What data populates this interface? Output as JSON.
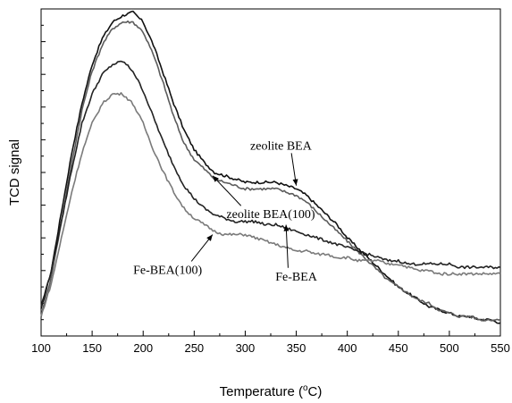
{
  "chart_data": {
    "type": "line",
    "title": "",
    "xlabel": "Temperature (°C)",
    "xlabel_base": "Temperature (",
    "xlabel_degree": "o",
    "xlabel_unit": "C)",
    "ylabel": "TCD signal",
    "xlim": [
      100,
      550
    ],
    "ylim": [
      0,
      1
    ],
    "x_ticks": [
      100,
      150,
      200,
      250,
      300,
      350,
      400,
      450,
      500,
      550
    ],
    "y_tick_labels_shown": false,
    "grid": false,
    "legend": "none",
    "series": [
      {
        "name": "zeolite BEA",
        "color": "#111111",
        "points": [
          [
            100,
            0.08
          ],
          [
            110,
            0.2
          ],
          [
            120,
            0.38
          ],
          [
            130,
            0.56
          ],
          [
            140,
            0.71
          ],
          [
            150,
            0.83
          ],
          [
            160,
            0.91
          ],
          [
            170,
            0.96
          ],
          [
            180,
            0.98
          ],
          [
            190,
            0.99
          ],
          [
            200,
            0.96
          ],
          [
            210,
            0.89
          ],
          [
            220,
            0.8
          ],
          [
            230,
            0.71
          ],
          [
            240,
            0.63
          ],
          [
            250,
            0.57
          ],
          [
            260,
            0.53
          ],
          [
            270,
            0.5
          ],
          [
            280,
            0.49
          ],
          [
            290,
            0.48
          ],
          [
            300,
            0.47
          ],
          [
            310,
            0.47
          ],
          [
            320,
            0.47
          ],
          [
            330,
            0.47
          ],
          [
            340,
            0.46
          ],
          [
            350,
            0.45
          ],
          [
            360,
            0.43
          ],
          [
            370,
            0.4
          ],
          [
            380,
            0.37
          ],
          [
            390,
            0.34
          ],
          [
            400,
            0.3
          ],
          [
            410,
            0.27
          ],
          [
            420,
            0.24
          ],
          [
            430,
            0.21
          ],
          [
            440,
            0.18
          ],
          [
            450,
            0.15
          ],
          [
            460,
            0.13
          ],
          [
            470,
            0.11
          ],
          [
            480,
            0.09
          ],
          [
            490,
            0.08
          ],
          [
            500,
            0.07
          ],
          [
            510,
            0.06
          ],
          [
            520,
            0.06
          ],
          [
            530,
            0.05
          ],
          [
            540,
            0.05
          ],
          [
            550,
            0.04
          ]
        ]
      },
      {
        "name": "zeolite BEA(100)",
        "color": "#5c5c5c",
        "points": [
          [
            100,
            0.06
          ],
          [
            110,
            0.18
          ],
          [
            120,
            0.35
          ],
          [
            130,
            0.53
          ],
          [
            140,
            0.69
          ],
          [
            150,
            0.81
          ],
          [
            160,
            0.89
          ],
          [
            170,
            0.94
          ],
          [
            180,
            0.96
          ],
          [
            190,
            0.96
          ],
          [
            200,
            0.93
          ],
          [
            210,
            0.86
          ],
          [
            220,
            0.77
          ],
          [
            230,
            0.67
          ],
          [
            240,
            0.59
          ],
          [
            250,
            0.54
          ],
          [
            260,
            0.51
          ],
          [
            270,
            0.48
          ],
          [
            280,
            0.47
          ],
          [
            290,
            0.46
          ],
          [
            300,
            0.45
          ],
          [
            310,
            0.45
          ],
          [
            320,
            0.45
          ],
          [
            330,
            0.45
          ],
          [
            340,
            0.44
          ],
          [
            350,
            0.43
          ],
          [
            360,
            0.41
          ],
          [
            370,
            0.38
          ],
          [
            380,
            0.35
          ],
          [
            390,
            0.32
          ],
          [
            400,
            0.29
          ],
          [
            410,
            0.26
          ],
          [
            420,
            0.23
          ],
          [
            430,
            0.2
          ],
          [
            440,
            0.17
          ],
          [
            450,
            0.15
          ],
          [
            460,
            0.13
          ],
          [
            470,
            0.11
          ],
          [
            480,
            0.1
          ],
          [
            490,
            0.08
          ],
          [
            500,
            0.07
          ],
          [
            510,
            0.06
          ],
          [
            520,
            0.06
          ],
          [
            530,
            0.05
          ],
          [
            540,
            0.05
          ],
          [
            550,
            0.05
          ]
        ]
      },
      {
        "name": "Fe-BEA",
        "color": "#222222",
        "points": [
          [
            100,
            0.09
          ],
          [
            110,
            0.2
          ],
          [
            120,
            0.35
          ],
          [
            130,
            0.51
          ],
          [
            140,
            0.65
          ],
          [
            150,
            0.74
          ],
          [
            160,
            0.8
          ],
          [
            170,
            0.83
          ],
          [
            180,
            0.84
          ],
          [
            190,
            0.81
          ],
          [
            200,
            0.75
          ],
          [
            210,
            0.67
          ],
          [
            220,
            0.59
          ],
          [
            230,
            0.52
          ],
          [
            240,
            0.46
          ],
          [
            250,
            0.42
          ],
          [
            260,
            0.39
          ],
          [
            270,
            0.37
          ],
          [
            280,
            0.36
          ],
          [
            290,
            0.35
          ],
          [
            300,
            0.35
          ],
          [
            310,
            0.35
          ],
          [
            320,
            0.34
          ],
          [
            330,
            0.34
          ],
          [
            340,
            0.33
          ],
          [
            350,
            0.32
          ],
          [
            360,
            0.31
          ],
          [
            370,
            0.3
          ],
          [
            380,
            0.29
          ],
          [
            390,
            0.28
          ],
          [
            400,
            0.27
          ],
          [
            410,
            0.26
          ],
          [
            420,
            0.25
          ],
          [
            430,
            0.24
          ],
          [
            440,
            0.23
          ],
          [
            450,
            0.23
          ],
          [
            460,
            0.22
          ],
          [
            470,
            0.22
          ],
          [
            480,
            0.22
          ],
          [
            490,
            0.22
          ],
          [
            500,
            0.22
          ],
          [
            510,
            0.21
          ],
          [
            520,
            0.21
          ],
          [
            530,
            0.21
          ],
          [
            540,
            0.21
          ],
          [
            550,
            0.21
          ]
        ]
      },
      {
        "name": "Fe-BEA(100)",
        "color": "#7a7a7a",
        "points": [
          [
            100,
            0.06
          ],
          [
            110,
            0.16
          ],
          [
            120,
            0.3
          ],
          [
            130,
            0.44
          ],
          [
            140,
            0.56
          ],
          [
            150,
            0.65
          ],
          [
            160,
            0.71
          ],
          [
            170,
            0.74
          ],
          [
            180,
            0.74
          ],
          [
            190,
            0.71
          ],
          [
            200,
            0.65
          ],
          [
            210,
            0.57
          ],
          [
            220,
            0.5
          ],
          [
            230,
            0.44
          ],
          [
            240,
            0.39
          ],
          [
            250,
            0.36
          ],
          [
            260,
            0.34
          ],
          [
            270,
            0.32
          ],
          [
            280,
            0.31
          ],
          [
            290,
            0.31
          ],
          [
            300,
            0.31
          ],
          [
            310,
            0.3
          ],
          [
            320,
            0.29
          ],
          [
            330,
            0.28
          ],
          [
            340,
            0.27
          ],
          [
            350,
            0.26
          ],
          [
            360,
            0.26
          ],
          [
            370,
            0.25
          ],
          [
            380,
            0.25
          ],
          [
            390,
            0.24
          ],
          [
            400,
            0.24
          ],
          [
            410,
            0.23
          ],
          [
            420,
            0.23
          ],
          [
            430,
            0.23
          ],
          [
            440,
            0.22
          ],
          [
            450,
            0.22
          ],
          [
            460,
            0.21
          ],
          [
            470,
            0.2
          ],
          [
            480,
            0.2
          ],
          [
            490,
            0.19
          ],
          [
            500,
            0.19
          ],
          [
            510,
            0.19
          ],
          [
            520,
            0.19
          ],
          [
            530,
            0.19
          ],
          [
            540,
            0.19
          ],
          [
            550,
            0.19
          ]
        ]
      }
    ],
    "annotations": [
      {
        "text": "zeolite BEA",
        "at": [
          350,
          0.46
        ],
        "text_at": [
          335,
          0.57
        ]
      },
      {
        "text": "zeolite BEA(100)",
        "at": [
          268,
          0.49
        ],
        "text_at": [
          325,
          0.36
        ]
      },
      {
        "text": "Fe-BEA(100)",
        "at": [
          268,
          0.31
        ],
        "text_at": [
          224,
          0.19
        ]
      },
      {
        "text": "Fe-BEA",
        "at": [
          340,
          0.34
        ],
        "text_at": [
          350,
          0.17
        ]
      }
    ]
  }
}
